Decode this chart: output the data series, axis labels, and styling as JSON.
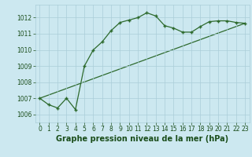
{
  "line1_x": [
    0,
    1,
    2,
    3,
    4,
    5,
    6,
    7,
    8,
    9,
    10,
    11,
    12,
    13,
    14,
    15,
    16,
    17,
    18,
    19,
    20,
    21,
    22,
    23
  ],
  "line1_y": [
    1007.0,
    1006.6,
    1006.4,
    1007.0,
    1006.3,
    1009.0,
    1010.0,
    1010.5,
    1011.2,
    1011.7,
    1011.85,
    1012.0,
    1012.3,
    1012.1,
    1011.5,
    1011.35,
    1011.1,
    1011.1,
    1011.45,
    1011.75,
    1011.8,
    1011.8,
    1011.7,
    1011.65
  ],
  "line2_x": [
    0,
    23
  ],
  "line2_y": [
    1007.0,
    1011.65
  ],
  "line_color": "#2d6a2d",
  "marker": "+",
  "background_color": "#cce8f0",
  "grid_color": "#aacdd8",
  "xlabel": "Graphe pression niveau de la mer (hPa)",
  "xlim": [
    -0.5,
    23.5
  ],
  "ylim": [
    1005.5,
    1012.8
  ],
  "yticks": [
    1006,
    1007,
    1008,
    1009,
    1010,
    1011,
    1012
  ],
  "xticks": [
    0,
    1,
    2,
    3,
    4,
    5,
    6,
    7,
    8,
    9,
    10,
    11,
    12,
    13,
    14,
    15,
    16,
    17,
    18,
    19,
    20,
    21,
    22,
    23
  ],
  "tick_color": "#1a4d1a",
  "tick_fontsize": 5.5,
  "xlabel_fontsize": 7,
  "linewidth": 0.9,
  "markersize": 3.5,
  "markeredgewidth": 1.0
}
